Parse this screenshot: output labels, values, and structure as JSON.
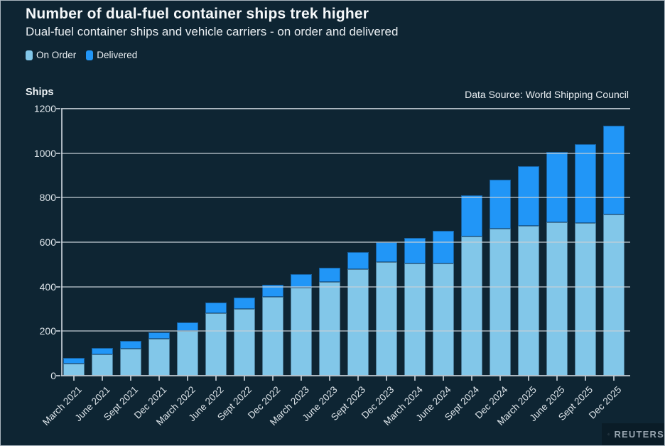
{
  "header": {
    "title": "Number of dual-fuel container ships trek higher",
    "subtitle": "Dual-fuel container ships and vehicle carriers - on order and delivered"
  },
  "source_note": "Data Source: World Shipping Council",
  "branding": "REUTERS",
  "colors": {
    "background": "#0e2533",
    "on_order": "#82c7e9",
    "delivered": "#2196f7",
    "gridline": "#c5cfd7",
    "text": "#e9eef2"
  },
  "legend": {
    "items": [
      {
        "label": "On Order",
        "color": "#82c7e9"
      },
      {
        "label": "Delivered",
        "color": "#2196f7"
      }
    ]
  },
  "chart_data": {
    "type": "bar",
    "stacked": true,
    "title": "Number of dual-fuel container ships trek higher",
    "subtitle": "Dual-fuel container ships and vehicle carriers - on order and delivered",
    "ylabel": "Ships",
    "xlabel": "",
    "ylim": [
      0,
      1200
    ],
    "yticks": [
      0,
      200,
      400,
      600,
      800,
      1000,
      1200
    ],
    "grid": "horizontal-overlay",
    "legend_position": "top-left",
    "categories": [
      "March 2021",
      "June 2021",
      "Sept 2021",
      "Dec 2021",
      "March 2022",
      "June 2022",
      "Sept 2022",
      "Dec 2022",
      "March 2023",
      "June 2023",
      "Sept 2023",
      "Dec 2023",
      "March 2024",
      "June 2024",
      "Sept 2024",
      "Dec 2024",
      "March 2025",
      "June 2025",
      "Sept 2025",
      "Dec 2025"
    ],
    "series": [
      {
        "name": "On Order",
        "color": "#82c7e9",
        "values": [
          55,
          95,
          120,
          165,
          200,
          280,
          300,
          355,
          395,
          420,
          480,
          510,
          505,
          505,
          625,
          660,
          675,
          690,
          685,
          725
        ]
      },
      {
        "name": "Delivered",
        "color": "#2196f7",
        "values": [
          25,
          30,
          35,
          30,
          40,
          50,
          50,
          55,
          60,
          65,
          75,
          90,
          115,
          145,
          185,
          220,
          265,
          315,
          355,
          400
        ]
      }
    ]
  }
}
